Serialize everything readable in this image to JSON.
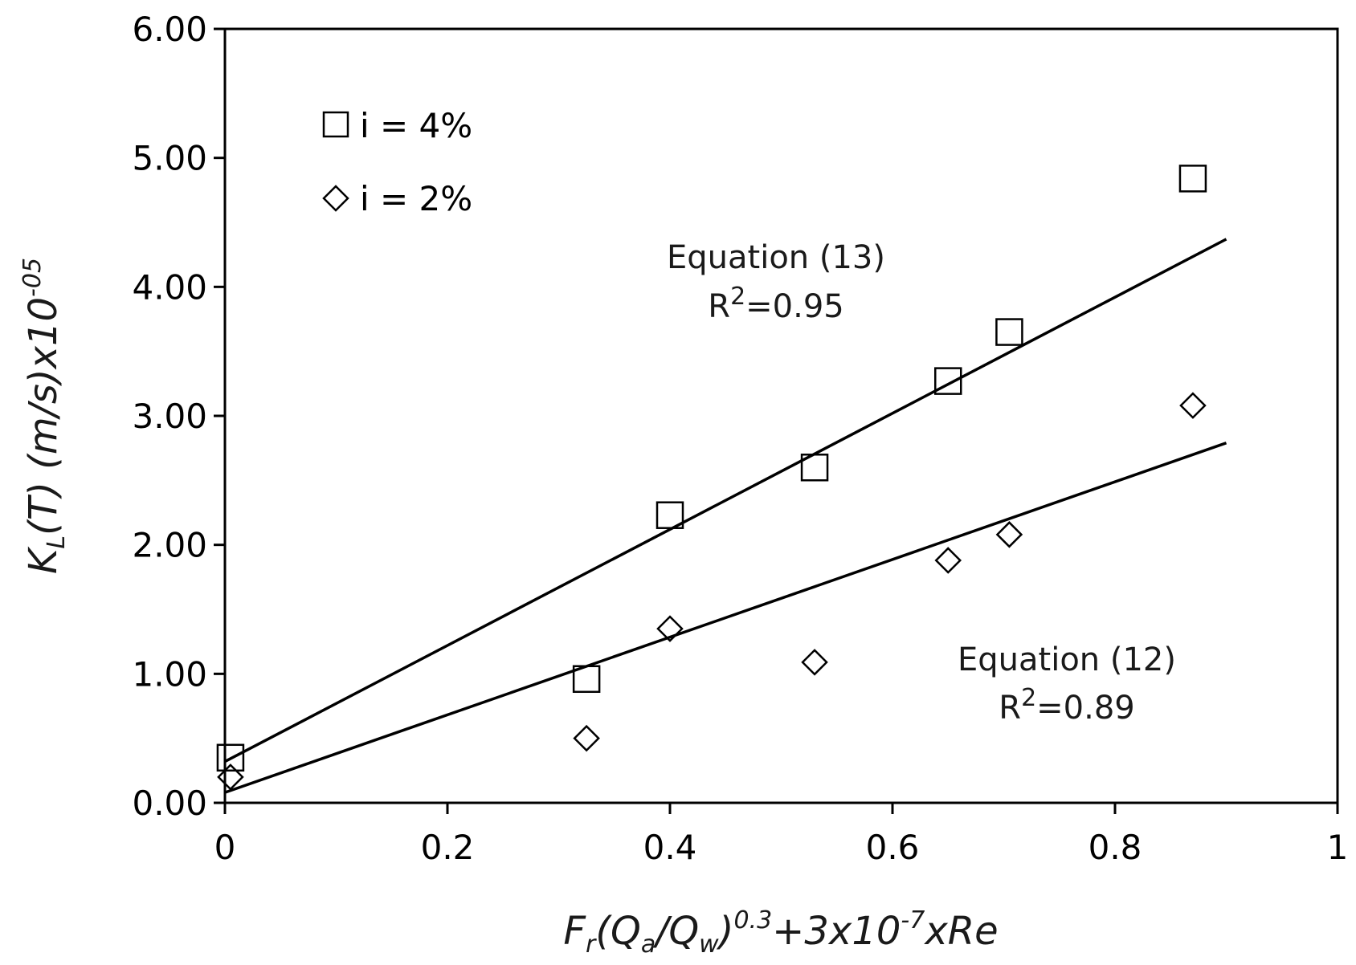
{
  "chart_data": {
    "type": "scatter",
    "xlabel": {
      "main_1": "F",
      "sub_1": "r",
      "main_2": "(Q",
      "sub_2": "a",
      "main_3": "/Q",
      "sub_3": "w",
      "main_4": ")",
      "sup_1": "0.3",
      "main_5": "+3x10",
      "sup_2": "-7",
      "main_6": "xRe"
    },
    "ylabel": {
      "main_1": "K",
      "sub_1": "L",
      "main_2": "(T) (m/s)x10",
      "sup_1": "-05"
    },
    "xlim": [
      0,
      1
    ],
    "ylim": [
      0,
      6
    ],
    "xticks": [
      0,
      0.2,
      0.4,
      0.6,
      0.8,
      1
    ],
    "xtick_labels": [
      "0",
      "0.2",
      "0.4",
      "0.6",
      "0.8",
      "1"
    ],
    "yticks": [
      0,
      1,
      2,
      3,
      4,
      5,
      6
    ],
    "ytick_labels": [
      "0.00",
      "1.00",
      "2.00",
      "3.00",
      "4.00",
      "5.00",
      "6.00"
    ],
    "grid": false,
    "legend_position": "top-left",
    "series": [
      {
        "name": "i = 4%",
        "marker": "square",
        "points": [
          [
            0.005,
            0.35
          ],
          [
            0.325,
            0.96
          ],
          [
            0.4,
            2.23
          ],
          [
            0.53,
            2.6
          ],
          [
            0.65,
            3.27
          ],
          [
            0.705,
            3.65
          ],
          [
            0.87,
            4.84
          ]
        ]
      },
      {
        "name": "i = 2%",
        "marker": "diamond",
        "points": [
          [
            0.005,
            0.2
          ],
          [
            0.325,
            0.5
          ],
          [
            0.4,
            1.35
          ],
          [
            0.53,
            1.09
          ],
          [
            0.65,
            1.88
          ],
          [
            0.705,
            2.08
          ],
          [
            0.87,
            3.08
          ]
        ]
      }
    ],
    "fit_lines": [
      {
        "series": "i = 4%",
        "x": [
          0,
          0.9
        ],
        "y": [
          0.32,
          4.37
        ]
      },
      {
        "series": "i = 2%",
        "x": [
          0,
          0.9
        ],
        "y": [
          0.08,
          2.79
        ]
      }
    ],
    "annotations": [
      {
        "title": "Equation (13)",
        "r_prefix": "R",
        "r_sup": "2",
        "r_value": "=0.95",
        "x": 0.575,
        "y": 4.27
      },
      {
        "title": "Equation (12)",
        "r_prefix": "R",
        "r_sup": "2",
        "r_value": "=0.89",
        "x": 0.755,
        "y": 1.1
      }
    ]
  }
}
